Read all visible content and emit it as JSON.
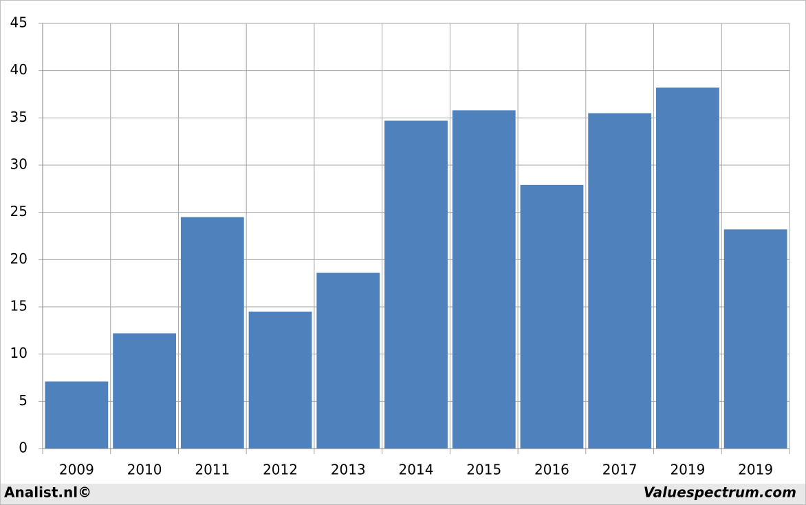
{
  "chart_data": {
    "type": "bar",
    "categories": [
      "2009",
      "2010",
      "2011",
      "2012",
      "2013",
      "2014",
      "2015",
      "2016",
      "2017",
      "2019",
      "2019"
    ],
    "values": [
      7.1,
      12.2,
      24.5,
      14.5,
      18.6,
      34.7,
      35.8,
      27.9,
      35.5,
      38.2,
      23.2
    ],
    "color": "#4f81bd",
    "ylim": [
      0,
      45
    ],
    "yticks": [
      0,
      5,
      10,
      15,
      20,
      25,
      30,
      35,
      40,
      45
    ],
    "grid": true
  },
  "footer": {
    "left": "Analist.nl©",
    "right": "Valuespectrum.com"
  }
}
